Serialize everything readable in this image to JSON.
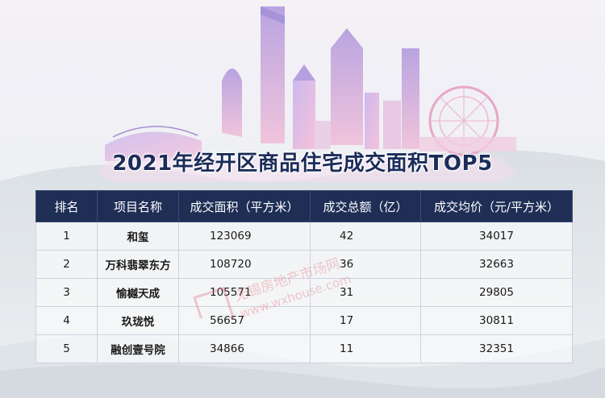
{
  "title": "2021年经开区商品住宅成交面积TOP5",
  "table": {
    "headers": [
      "排名",
      "项目名称",
      "成交面积（平方米）",
      "成交总额（亿）",
      "成交均价（元/平方米）"
    ],
    "rows": [
      {
        "rank": "1",
        "name": "和玺",
        "area": "123069",
        "total": "42",
        "price": "34017"
      },
      {
        "rank": "2",
        "name": "万科翡翠东方",
        "area": "108720",
        "total": "36",
        "price": "32663"
      },
      {
        "rank": "3",
        "name": "愉樾天成",
        "area": "105571",
        "total": "31",
        "price": "29805"
      },
      {
        "rank": "4",
        "name": "玖珑悦",
        "area": "56657",
        "total": "17",
        "price": "30811"
      },
      {
        "rank": "5",
        "name": "融创壹号院",
        "area": "34866",
        "total": "11",
        "price": "32351"
      }
    ]
  },
  "watermark": {
    "line1": "无锡房地产市场网",
    "line2": "www.wxhouse.com"
  },
  "colors": {
    "header_bg": "#1e2e55",
    "title": "#1b2c5a",
    "skyline_accent": "#c7a6dd"
  }
}
